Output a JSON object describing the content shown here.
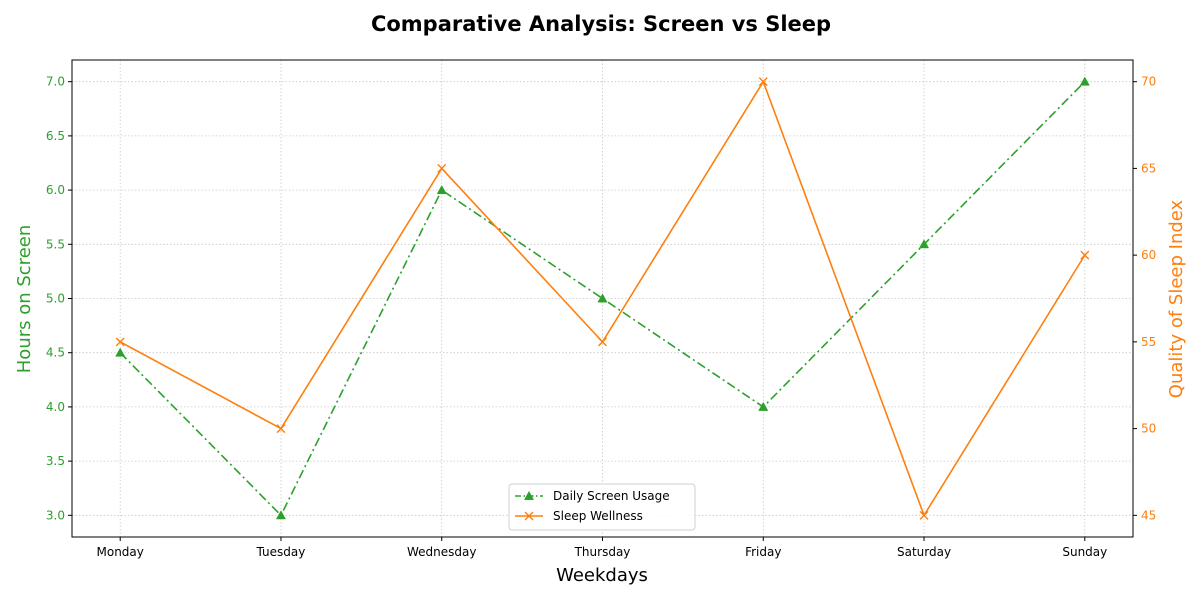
{
  "chart_data": {
    "type": "line",
    "title": "Comparative Analysis: Screen vs Sleep",
    "xlabel": "Weekdays",
    "ylabel_left": "Hours on Screen",
    "ylabel_right": "Quality of Sleep Index",
    "categories": [
      "Monday",
      "Tuesday",
      "Wednesday",
      "Thursday",
      "Friday",
      "Saturday",
      "Sunday"
    ],
    "ylim_left": [
      2.8,
      7.2
    ],
    "yticks_left": [
      "3.0",
      "3.5",
      "4.0",
      "4.5",
      "5.0",
      "5.5",
      "6.0",
      "6.5",
      "7.0"
    ],
    "ylim_right": [
      43.75,
      71.25
    ],
    "yticks_right": [
      "45",
      "50",
      "55",
      "60",
      "65",
      "70"
    ],
    "grid": true,
    "legend_position": "bottom-center",
    "series": [
      {
        "name": "Daily Screen Usage",
        "axis": "left",
        "color": "#2ca02c",
        "line_style": "dash-dot",
        "marker": "triangle",
        "values": [
          4.5,
          3.0,
          6.0,
          5.0,
          4.0,
          5.5,
          7.0
        ]
      },
      {
        "name": "Sleep Wellness",
        "axis": "right",
        "color": "#ff7f0e",
        "line_style": "solid",
        "marker": "x",
        "values": [
          55,
          50,
          65,
          55,
          70,
          45,
          60
        ]
      }
    ]
  }
}
